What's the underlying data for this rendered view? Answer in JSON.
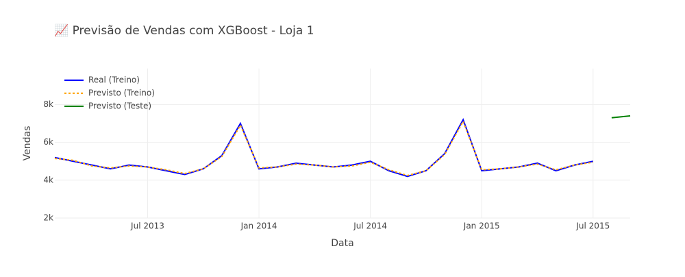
{
  "chart_data": {
    "type": "line",
    "title": "📈 Previsão de Vendas com XGBoost - Loja 1",
    "xlabel": "Data",
    "ylabel": "Vendas",
    "x": [
      "2013-02",
      "2013-03",
      "2013-04",
      "2013-05",
      "2013-06",
      "2013-07",
      "2013-08",
      "2013-09",
      "2013-10",
      "2013-11",
      "2013-12",
      "2014-01",
      "2014-02",
      "2014-03",
      "2014-04",
      "2014-05",
      "2014-06",
      "2014-07",
      "2014-08",
      "2014-09",
      "2014-10",
      "2014-11",
      "2014-12",
      "2015-01",
      "2015-02",
      "2015-03",
      "2015-04",
      "2015-05",
      "2015-06",
      "2015-07",
      "2015-08",
      "2015-09"
    ],
    "series": [
      {
        "name": "Real (Treino)",
        "color": "#0000ff",
        "dash": "solid",
        "values": [
          5200,
          5000,
          4800,
          4600,
          4800,
          4700,
          4500,
          4300,
          4600,
          5300,
          7000,
          4600,
          4700,
          4900,
          4800,
          4700,
          4800,
          5000,
          4500,
          4200,
          4500,
          5400,
          7200,
          4500,
          4600,
          4700,
          4900,
          4500,
          4800,
          5000,
          null,
          null
        ]
      },
      {
        "name": "Previsto (Treino)",
        "color": "#ffa500",
        "dash": "dot",
        "values": [
          5150,
          5050,
          4750,
          4650,
          4750,
          4700,
          4550,
          4350,
          4600,
          5250,
          6900,
          4650,
          4700,
          4850,
          4800,
          4700,
          4750,
          4950,
          4550,
          4250,
          4500,
          5350,
          7100,
          4550,
          4600,
          4700,
          4850,
          4550,
          4800,
          4950,
          null,
          null
        ]
      },
      {
        "name": "Previsto (Teste)",
        "color": "#008000",
        "dash": "solid",
        "values": [
          null,
          null,
          null,
          null,
          null,
          null,
          null,
          null,
          null,
          null,
          null,
          null,
          null,
          null,
          null,
          null,
          null,
          null,
          null,
          null,
          null,
          null,
          null,
          null,
          null,
          null,
          null,
          null,
          null,
          null,
          7300,
          7400
        ]
      }
    ],
    "xlim": [
      "2013-02",
      "2015-09"
    ],
    "xticks": [
      {
        "value": "2013-07",
        "label": "Jul 2013"
      },
      {
        "value": "2014-01",
        "label": "Jan 2014"
      },
      {
        "value": "2014-07",
        "label": "Jul 2014"
      },
      {
        "value": "2015-01",
        "label": "Jan 2015"
      },
      {
        "value": "2015-07",
        "label": "Jul 2015"
      }
    ],
    "ylim": [
      2000,
      9900
    ],
    "yticks": [
      {
        "value": 2000,
        "label": "2k"
      },
      {
        "value": 4000,
        "label": "4k"
      },
      {
        "value": 6000,
        "label": "6k"
      },
      {
        "value": 8000,
        "label": "8k"
      }
    ],
    "grid": true,
    "legend": "top-left"
  }
}
